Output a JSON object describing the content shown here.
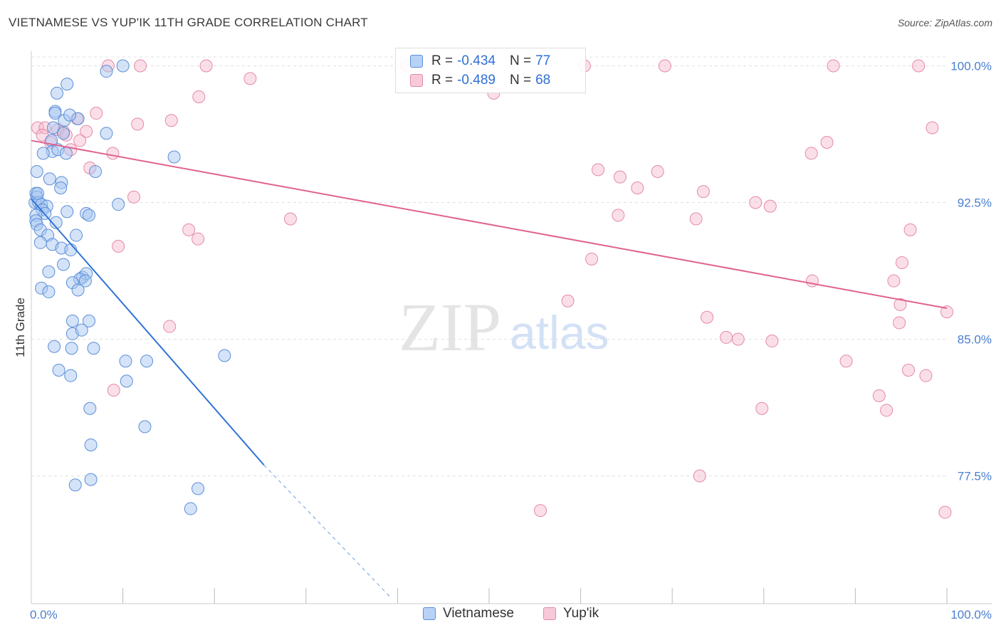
{
  "title": "VIETNAMESE VS YUP'IK 11TH GRADE CORRELATION CHART",
  "source": "Source: ZipAtlas.com",
  "watermark": {
    "zip": "ZIP",
    "atlas": "atlas"
  },
  "legend": {
    "rows": [
      {
        "r_label": "R =",
        "r_value": "-0.434",
        "n_label": "N =",
        "n_value": "77"
      },
      {
        "r_label": "R =",
        "r_value": "-0.489",
        "n_label": "N =",
        "n_value": "68"
      }
    ]
  },
  "bottom_legend": [
    "Vietnamese",
    "Yup'ik"
  ],
  "colors": {
    "blue_fill": "#aac8f2",
    "blue_stroke": "#5b8fd8",
    "blue_line": "#2f74d6",
    "pink_fill": "#f6b8cc",
    "pink_stroke": "#e48aa8",
    "pink_line": "#e0628f",
    "tick_text": "#4a7fd0",
    "grid": "#e0e0e0"
  },
  "chart_data": {
    "type": "scatter",
    "title": "VIETNAMESE VS YUP'IK 11TH GRADE CORRELATION CHART",
    "xlabel": "",
    "ylabel": "11th Grade",
    "xlim": [
      0,
      100
    ],
    "ylim": [
      70.8,
      100.8
    ],
    "x_tick_labels": [
      "0.0%",
      "100.0%"
    ],
    "y_ticks": [
      77.5,
      85.0,
      92.5,
      100.0
    ],
    "y_tick_labels": [
      "77.5%",
      "85.0%",
      "92.5%",
      "100.0%"
    ],
    "grid": true,
    "legend_position": "top-center",
    "series": [
      {
        "name": "Vietnamese",
        "R": -0.434,
        "N": 77,
        "trend": {
          "x": [
            0.0,
            25.4
          ],
          "y": [
            92.7,
            78.1
          ]
        },
        "trend_dashed": {
          "x": [
            25.4,
            39.3
          ],
          "y": [
            78.1,
            70.8
          ]
        },
        "points": [
          [
            10.0,
            100.0
          ],
          [
            8.2,
            99.7
          ],
          [
            3.9,
            99.0
          ],
          [
            2.8,
            98.5
          ],
          [
            2.6,
            97.5
          ],
          [
            2.6,
            97.4
          ],
          [
            3.6,
            97.0
          ],
          [
            5.1,
            97.1
          ],
          [
            3.5,
            96.3
          ],
          [
            8.2,
            96.3
          ],
          [
            2.2,
            95.9
          ],
          [
            2.3,
            95.3
          ],
          [
            1.3,
            95.2
          ],
          [
            2.9,
            95.4
          ],
          [
            3.8,
            95.2
          ],
          [
            15.6,
            95.0
          ],
          [
            0.6,
            94.2
          ],
          [
            7.0,
            94.2
          ],
          [
            2.0,
            93.8
          ],
          [
            3.3,
            93.6
          ],
          [
            3.2,
            93.3
          ],
          [
            0.5,
            93.0
          ],
          [
            0.6,
            92.8
          ],
          [
            0.4,
            92.5
          ],
          [
            0.8,
            92.5
          ],
          [
            1.1,
            92.4
          ],
          [
            1.7,
            92.3
          ],
          [
            1.2,
            92.1
          ],
          [
            9.5,
            92.4
          ],
          [
            1.5,
            91.9
          ],
          [
            0.5,
            91.8
          ],
          [
            3.9,
            92.0
          ],
          [
            6.0,
            91.9
          ],
          [
            6.3,
            91.8
          ],
          [
            0.5,
            91.5
          ],
          [
            0.6,
            91.3
          ],
          [
            2.7,
            91.4
          ],
          [
            1.0,
            91.0
          ],
          [
            1.8,
            90.7
          ],
          [
            4.9,
            90.7
          ],
          [
            1.0,
            90.3
          ],
          [
            2.3,
            90.2
          ],
          [
            3.3,
            90.0
          ],
          [
            4.3,
            89.9
          ],
          [
            3.5,
            89.1
          ],
          [
            1.9,
            88.7
          ],
          [
            5.6,
            88.4
          ],
          [
            6.0,
            88.6
          ],
          [
            5.3,
            88.3
          ],
          [
            4.5,
            88.1
          ],
          [
            5.9,
            88.2
          ],
          [
            1.1,
            87.8
          ],
          [
            1.9,
            87.6
          ],
          [
            5.1,
            87.7
          ],
          [
            4.5,
            86.0
          ],
          [
            6.3,
            86.0
          ],
          [
            4.5,
            85.3
          ],
          [
            5.5,
            85.5
          ],
          [
            2.5,
            84.6
          ],
          [
            4.4,
            84.5
          ],
          [
            6.8,
            84.5
          ],
          [
            21.1,
            84.1
          ],
          [
            10.3,
            83.8
          ],
          [
            12.6,
            83.8
          ],
          [
            3.0,
            83.3
          ],
          [
            4.3,
            83.0
          ],
          [
            10.4,
            82.7
          ],
          [
            6.4,
            81.2
          ],
          [
            12.4,
            80.2
          ],
          [
            6.5,
            79.2
          ],
          [
            6.5,
            77.3
          ],
          [
            4.8,
            77.0
          ],
          [
            18.2,
            76.8
          ],
          [
            17.4,
            75.7
          ],
          [
            4.2,
            97.3
          ],
          [
            2.4,
            96.6
          ],
          [
            0.7,
            93.0
          ]
        ]
      },
      {
        "name": "Yup'ik",
        "R": -0.489,
        "N": 68,
        "trend": {
          "x": [
            0.0,
            100.0
          ],
          "y": [
            95.9,
            86.7
          ]
        },
        "points": [
          [
            8.4,
            100.0
          ],
          [
            11.9,
            100.0
          ],
          [
            19.1,
            100.0
          ],
          [
            41.0,
            100.0
          ],
          [
            60.4,
            100.0
          ],
          [
            69.2,
            100.0
          ],
          [
            87.6,
            100.0
          ],
          [
            96.9,
            100.0
          ],
          [
            23.9,
            99.3
          ],
          [
            18.3,
            98.3
          ],
          [
            50.5,
            98.5
          ],
          [
            7.1,
            97.4
          ],
          [
            5.0,
            97.1
          ],
          [
            15.3,
            97.0
          ],
          [
            11.6,
            96.8
          ],
          [
            0.7,
            96.6
          ],
          [
            1.5,
            96.6
          ],
          [
            2.9,
            96.5
          ],
          [
            3.5,
            96.4
          ],
          [
            6.0,
            96.4
          ],
          [
            98.4,
            96.6
          ],
          [
            1.2,
            96.2
          ],
          [
            3.8,
            96.2
          ],
          [
            5.3,
            95.9
          ],
          [
            2.1,
            95.8
          ],
          [
            86.9,
            95.8
          ],
          [
            4.3,
            95.4
          ],
          [
            85.2,
            95.2
          ],
          [
            8.9,
            95.2
          ],
          [
            6.4,
            94.4
          ],
          [
            61.9,
            94.3
          ],
          [
            64.3,
            93.9
          ],
          [
            68.4,
            94.2
          ],
          [
            66.2,
            93.3
          ],
          [
            73.4,
            93.1
          ],
          [
            11.2,
            92.8
          ],
          [
            79.1,
            92.5
          ],
          [
            80.7,
            92.3
          ],
          [
            64.1,
            91.8
          ],
          [
            72.6,
            91.6
          ],
          [
            28.3,
            91.6
          ],
          [
            17.2,
            91.0
          ],
          [
            96.0,
            91.0
          ],
          [
            18.2,
            90.5
          ],
          [
            9.5,
            90.1
          ],
          [
            61.2,
            89.4
          ],
          [
            95.1,
            89.2
          ],
          [
            85.3,
            88.2
          ],
          [
            94.2,
            88.2
          ],
          [
            58.6,
            87.1
          ],
          [
            94.9,
            86.9
          ],
          [
            100.0,
            86.5
          ],
          [
            73.8,
            86.2
          ],
          [
            94.8,
            85.9
          ],
          [
            15.1,
            85.7
          ],
          [
            75.9,
            85.1
          ],
          [
            77.2,
            85.0
          ],
          [
            80.9,
            84.9
          ],
          [
            89.0,
            83.8
          ],
          [
            95.8,
            83.3
          ],
          [
            97.7,
            83.0
          ],
          [
            9.0,
            82.2
          ],
          [
            92.6,
            81.9
          ],
          [
            93.4,
            81.1
          ],
          [
            79.8,
            81.2
          ],
          [
            73.0,
            77.5
          ],
          [
            55.6,
            75.6
          ],
          [
            99.8,
            75.5
          ]
        ]
      }
    ]
  }
}
